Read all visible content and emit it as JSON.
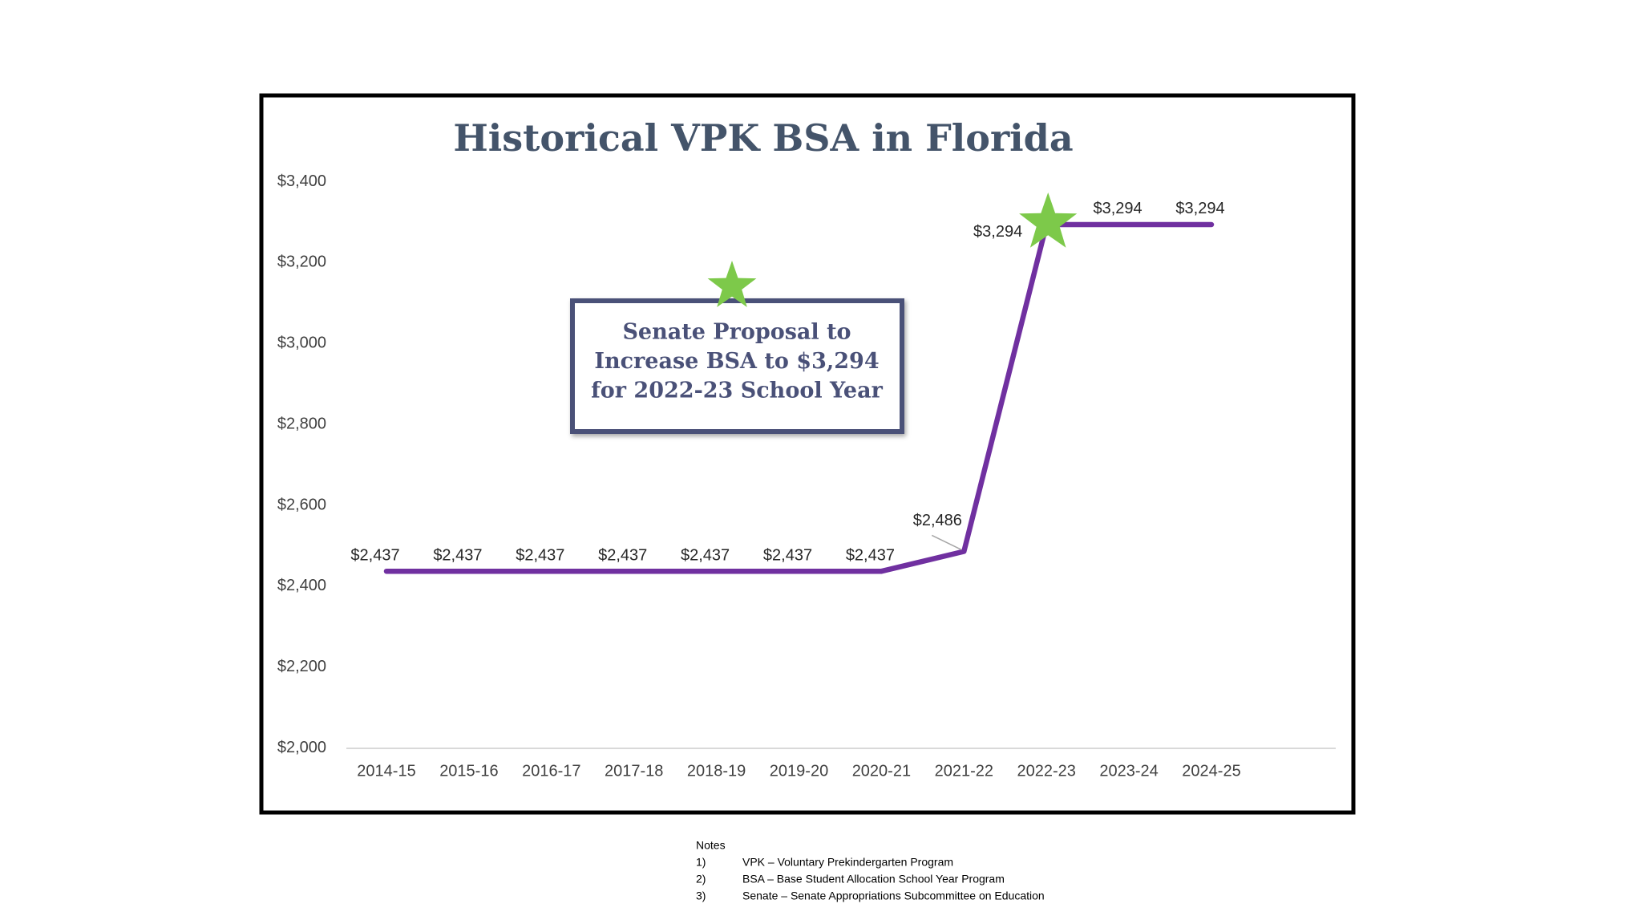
{
  "chart_data": {
    "type": "line",
    "title": "Historical VPK BSA in Florida",
    "categories": [
      "2014-15",
      "2015-16",
      "2016-17",
      "2017-18",
      "2018-19",
      "2019-20",
      "2020-21",
      "2021-22",
      "2022-23",
      "2023-24",
      "2024-25"
    ],
    "values": [
      2437,
      2437,
      2437,
      2437,
      2437,
      2437,
      2437,
      2486,
      3294,
      3294,
      3294
    ],
    "value_labels": [
      "$2,437",
      "$2,437",
      "$2,437",
      "$2,437",
      "$2,437",
      "$2,437",
      "$2,437",
      "$2,486",
      "$3,294",
      "$3,294",
      "$3,294"
    ],
    "color": "#7030a0",
    "ylim": [
      2000,
      3400
    ],
    "yticks": [
      {
        "value": 2000,
        "label": "$2,000"
      },
      {
        "value": 2200,
        "label": "$2,200"
      },
      {
        "value": 2400,
        "label": "$2,400"
      },
      {
        "value": 2600,
        "label": "$2,600"
      },
      {
        "value": 2800,
        "label": "$2,800"
      },
      {
        "value": 3000,
        "label": "$3,000"
      },
      {
        "value": 3200,
        "label": "$3,200"
      },
      {
        "value": 3400,
        "label": "$3,400"
      }
    ],
    "grid": false,
    "annotation": [
      "Senate Proposal to",
      "Increase BSA to $3,294",
      "for 2022-23 School Year"
    ]
  },
  "notes": {
    "title": "Notes",
    "items": [
      {
        "number": "1)",
        "text": "VPK – Voluntary Prekindergarten Program"
      },
      {
        "number": "2)",
        "text": "BSA – Base Student Allocation School Year Program"
      },
      {
        "number": "3)",
        "text": "Senate – Senate Appropriations Subcommittee on Education"
      }
    ]
  }
}
